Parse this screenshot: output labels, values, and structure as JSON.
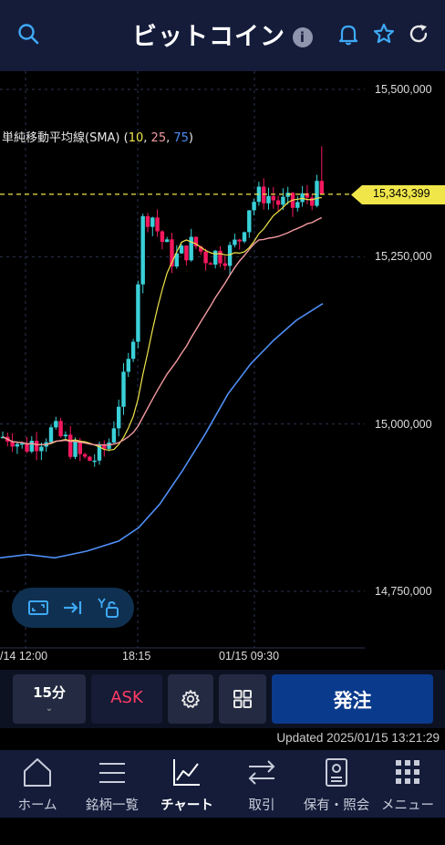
{
  "header": {
    "title": "ビットコイン",
    "info_glyph": "i",
    "icons": [
      "search-icon",
      "info-icon",
      "bell-icon",
      "star-icon",
      "refresh-icon"
    ]
  },
  "indicator": {
    "name": "単純移動平均線(SMA)",
    "open": " (",
    "p1": "10",
    "sep1": ", ",
    "p2": "25",
    "sep2": ", ",
    "p3": "75",
    "close": ")",
    "colors": {
      "sma10": "#f0e64a",
      "sma25": "#f49aa0",
      "sma75": "#4f8ef5"
    }
  },
  "current_price": "15,343,399",
  "chart_data": {
    "type": "candlestick",
    "y_ticks": [
      "15,500,000",
      "15,250,000",
      "15,000,000",
      "14,750,000"
    ],
    "x_ticks": [
      "/14 12:00",
      "18:15",
      "01/15 09:30"
    ],
    "last_price": 15343399,
    "colors": {
      "up": "#3ad0d8",
      "down": "#f5185e",
      "last_price_line": "#f0e64a"
    }
  },
  "toolbar": {
    "interval": "15分",
    "interval_chevron": "⌄",
    "side": "ASK",
    "order": "発注"
  },
  "updated": "Updated 2025/01/15 13:21:29",
  "nav": {
    "items": [
      {
        "label": "ホーム",
        "icon": "home-icon"
      },
      {
        "label": "銘柄一覧",
        "icon": "list-icon"
      },
      {
        "label": "チャート",
        "icon": "chart-icon",
        "active": true
      },
      {
        "label": "取引",
        "icon": "trade-icon"
      },
      {
        "label": "保有・照会",
        "icon": "portfolio-icon"
      },
      {
        "label": "メニュー",
        "icon": "menu-grid-icon"
      }
    ]
  }
}
